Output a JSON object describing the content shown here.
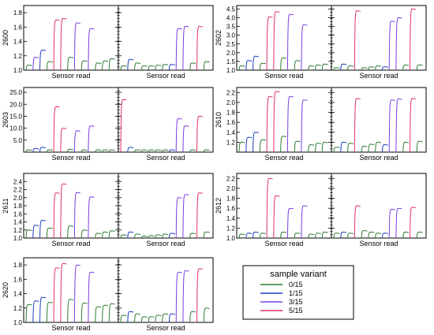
{
  "chart_data": {
    "type": "line",
    "figure_type": "small-multiples",
    "grid": false,
    "legend": {
      "title": "sample variant",
      "placement": "bottom-right",
      "entries": [
        {
          "label": "0/15",
          "color": "#2e7d32"
        },
        {
          "label": "1/15",
          "color": "#1f3fbf"
        },
        {
          "label": "3/15",
          "color": "#7b3fe4"
        },
        {
          "label": "5/15",
          "color": "#e0316a"
        }
      ]
    },
    "panels": [
      {
        "sample": "2600",
        "xlabel": "Sensor read",
        "ylim": [
          1.0,
          1.9
        ],
        "yticks": [
          "1.0",
          "1.2",
          "1.4",
          "1.6",
          "1.8"
        ],
        "left": [
          [
            0,
            1.07
          ],
          [
            2,
            1.18
          ],
          [
            1,
            1.28
          ],
          [
            0,
            1.12
          ],
          [
            3,
            1.7
          ],
          [
            3,
            1.72
          ],
          [
            0,
            1.18
          ],
          [
            2,
            1.66
          ],
          [
            0,
            1.13
          ],
          [
            2,
            1.58
          ],
          [
            0,
            1.1
          ],
          [
            0,
            1.13
          ],
          [
            0,
            1.16
          ]
        ],
        "right": [
          [
            0,
            1.06
          ],
          [
            1,
            1.15
          ],
          [
            0,
            1.1
          ],
          [
            0,
            1.06
          ],
          [
            0,
            1.06
          ],
          [
            0,
            1.07
          ],
          [
            0,
            1.08
          ],
          [
            1,
            1.08
          ],
          [
            2,
            1.58
          ],
          [
            2,
            1.61
          ],
          [
            0,
            1.1
          ],
          [
            3,
            1.61
          ],
          [
            0,
            1.12
          ]
        ]
      },
      {
        "sample": "2602",
        "xlabel": "Sensor read",
        "ylim": [
          1.0,
          4.7
        ],
        "yticks": [
          "1.0",
          "1.5",
          "2.0",
          "2.5",
          "3.0",
          "3.5",
          "4.0",
          "4.5"
        ],
        "left": [
          [
            0,
            1.25
          ],
          [
            1,
            1.55
          ],
          [
            1,
            1.8
          ],
          [
            0,
            1.4
          ],
          [
            3,
            4.05
          ],
          [
            3,
            4.35
          ],
          [
            0,
            1.7
          ],
          [
            2,
            4.2
          ],
          [
            0,
            1.55
          ],
          [
            2,
            3.6
          ],
          [
            0,
            1.25
          ],
          [
            0,
            1.3
          ],
          [
            0,
            1.35
          ]
        ],
        "right": [
          [
            0,
            1.15
          ],
          [
            1,
            1.35
          ],
          [
            0,
            1.25
          ],
          [
            3,
            4.4
          ],
          [
            0,
            1.15
          ],
          [
            0,
            1.2
          ],
          [
            0,
            1.25
          ],
          [
            1,
            1.2
          ],
          [
            2,
            3.8
          ],
          [
            2,
            4.0
          ],
          [
            0,
            1.3
          ],
          [
            3,
            4.5
          ],
          [
            0,
            1.3
          ]
        ]
      },
      {
        "sample": "2603",
        "xlabel": "Sensor read",
        "ylim": [
          0,
          27
        ],
        "yticks": [
          "5.0",
          "10.0",
          "15.0",
          "20.0",
          "25.0"
        ],
        "left": [
          [
            0,
            1.0
          ],
          [
            1,
            1.5
          ],
          [
            1,
            2.0
          ],
          [
            0,
            1.0
          ],
          [
            3,
            19.0
          ],
          [
            3,
            10.0
          ],
          [
            0,
            1.2
          ],
          [
            2,
            9.0
          ],
          [
            0,
            1.0
          ],
          [
            2,
            11.0
          ],
          [
            0,
            1.0
          ],
          [
            0,
            1.0
          ],
          [
            0,
            1.0
          ]
        ],
        "right": [
          [
            3,
            22.0
          ],
          [
            1,
            2.0
          ],
          [
            0,
            1.0
          ],
          [
            0,
            1.0
          ],
          [
            0,
            1.0
          ],
          [
            0,
            1.0
          ],
          [
            0,
            1.0
          ],
          [
            1,
            1.0
          ],
          [
            2,
            14.0
          ],
          [
            2,
            11.0
          ],
          [
            0,
            1.0
          ],
          [
            3,
            15.0
          ],
          [
            0,
            1.0
          ]
        ]
      },
      {
        "sample": "2610",
        "xlabel": "Sensor read",
        "ylim": [
          1.0,
          2.3
        ],
        "yticks": [
          "1.2",
          "1.4",
          "1.6",
          "1.8",
          "2.0",
          "2.2"
        ],
        "left": [
          [
            0,
            1.2
          ],
          [
            1,
            1.3
          ],
          [
            1,
            1.4
          ],
          [
            0,
            1.25
          ],
          [
            3,
            2.12
          ],
          [
            3,
            2.22
          ],
          [
            0,
            1.32
          ],
          [
            2,
            2.12
          ],
          [
            0,
            1.22
          ],
          [
            2,
            2.05
          ],
          [
            0,
            1.15
          ],
          [
            0,
            1.18
          ],
          [
            0,
            1.2
          ]
        ],
        "right": [
          [
            0,
            1.1
          ],
          [
            1,
            1.2
          ],
          [
            0,
            1.18
          ],
          [
            3,
            2.08
          ],
          [
            0,
            1.12
          ],
          [
            0,
            1.16
          ],
          [
            0,
            1.2
          ],
          [
            1,
            1.15
          ],
          [
            2,
            2.05
          ],
          [
            2,
            2.07
          ],
          [
            0,
            1.2
          ],
          [
            3,
            2.08
          ],
          [
            0,
            1.22
          ]
        ]
      },
      {
        "sample": "2611",
        "xlabel": "Sensor read",
        "ylim": [
          1.0,
          2.6
        ],
        "yticks": [
          "1.0",
          "1.2",
          "1.4",
          "1.6",
          "1.8",
          "2.0",
          "2.2",
          "2.4"
        ],
        "left": [
          [
            0,
            1.2
          ],
          [
            1,
            1.32
          ],
          [
            1,
            1.44
          ],
          [
            0,
            1.25
          ],
          [
            3,
            2.12
          ],
          [
            3,
            2.34
          ],
          [
            0,
            1.3
          ],
          [
            2,
            2.13
          ],
          [
            0,
            1.2
          ],
          [
            2,
            2.02
          ],
          [
            0,
            1.12
          ],
          [
            0,
            1.15
          ],
          [
            0,
            1.18
          ]
        ],
        "right": [
          [
            0,
            1.08
          ],
          [
            1,
            1.15
          ],
          [
            0,
            1.1
          ],
          [
            0,
            1.05
          ],
          [
            0,
            1.06
          ],
          [
            0,
            1.08
          ],
          [
            0,
            1.1
          ],
          [
            1,
            1.12
          ],
          [
            2,
            2.0
          ],
          [
            2,
            2.08
          ],
          [
            0,
            1.12
          ],
          [
            3,
            2.12
          ],
          [
            0,
            1.15
          ]
        ]
      },
      {
        "sample": "2612",
        "xlabel": "Sensor read",
        "ylim": [
          1.0,
          2.3
        ],
        "yticks": [
          "1.0",
          "1.2",
          "1.4",
          "1.6",
          "1.8",
          "2.0",
          "2.2"
        ],
        "left": [
          [
            0,
            1.08
          ],
          [
            1,
            1.1
          ],
          [
            1,
            1.12
          ],
          [
            0,
            1.1
          ],
          [
            3,
            2.2
          ],
          [
            3,
            1.85
          ],
          [
            0,
            1.12
          ],
          [
            2,
            1.6
          ],
          [
            0,
            1.1
          ],
          [
            2,
            1.65
          ],
          [
            0,
            1.08
          ],
          [
            0,
            1.1
          ],
          [
            0,
            1.12
          ]
        ],
        "right": [
          [
            0,
            1.1
          ],
          [
            1,
            1.12
          ],
          [
            0,
            1.1
          ],
          [
            3,
            1.65
          ],
          [
            0,
            1.15
          ],
          [
            0,
            1.12
          ],
          [
            0,
            1.1
          ],
          [
            1,
            1.1
          ],
          [
            2,
            1.58
          ],
          [
            2,
            1.6
          ],
          [
            0,
            1.12
          ],
          [
            3,
            1.62
          ],
          [
            0,
            1.12
          ]
        ]
      },
      {
        "sample": "2620",
        "xlabel": "Sensor read",
        "ylim": [
          1.0,
          1.9
        ],
        "yticks": [
          "1.0",
          "1.2",
          "1.4",
          "1.6",
          "1.8"
        ],
        "left": [
          [
            0,
            1.25
          ],
          [
            1,
            1.3
          ],
          [
            1,
            1.35
          ],
          [
            0,
            1.28
          ],
          [
            3,
            1.76
          ],
          [
            3,
            1.82
          ],
          [
            0,
            1.32
          ],
          [
            2,
            1.8
          ],
          [
            0,
            1.27
          ],
          [
            2,
            1.7
          ],
          [
            0,
            1.22
          ],
          [
            0,
            1.24
          ],
          [
            0,
            1.26
          ]
        ],
        "right": [
          [
            0,
            1.1
          ],
          [
            1,
            1.15
          ],
          [
            0,
            1.12
          ],
          [
            0,
            1.08
          ],
          [
            0,
            1.08
          ],
          [
            0,
            1.1
          ],
          [
            0,
            1.12
          ],
          [
            1,
            1.12
          ],
          [
            2,
            1.7
          ],
          [
            2,
            1.72
          ],
          [
            0,
            1.15
          ],
          [
            3,
            1.75
          ],
          [
            0,
            1.2
          ]
        ]
      }
    ]
  }
}
